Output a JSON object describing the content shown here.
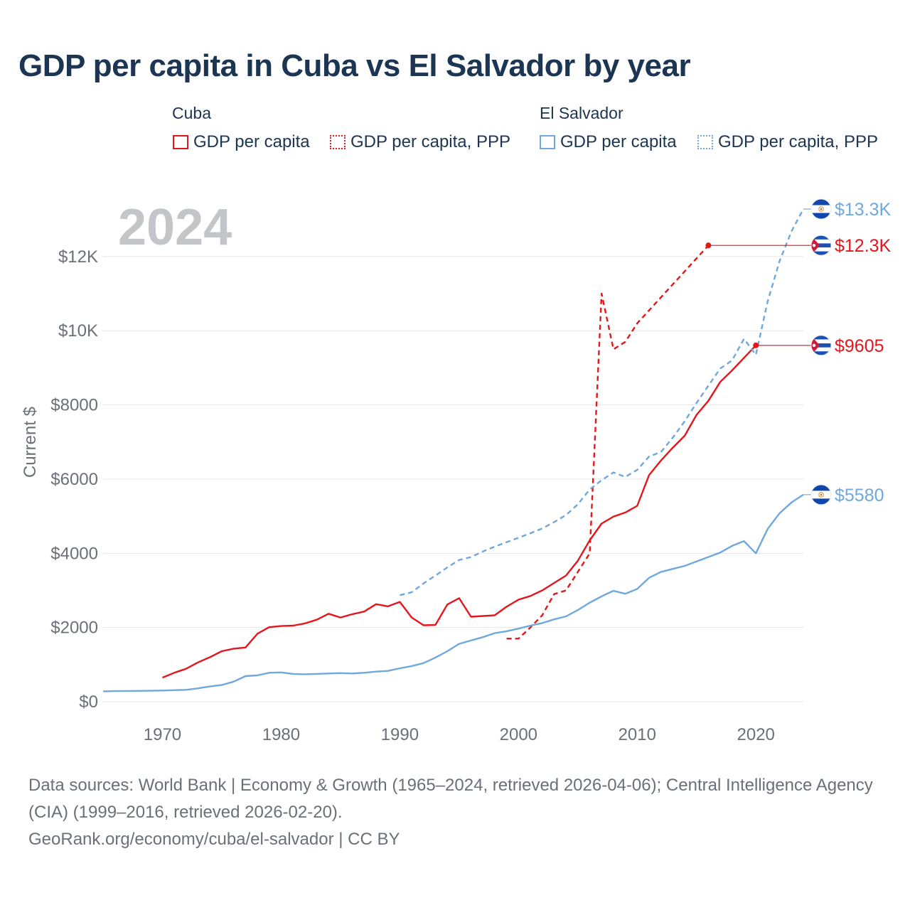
{
  "title": "GDP per capita in Cuba vs El Salvador by year",
  "legend": {
    "groups": [
      {
        "name": "Cuba",
        "items": [
          "GDP per capita",
          "GDP per capita, PPP"
        ]
      },
      {
        "name": "El Salvador",
        "items": [
          "GDP per capita",
          "GDP per capita, PPP"
        ]
      }
    ]
  },
  "colors": {
    "cuba": "#e3161b",
    "el_salvador": "#6fa8dc",
    "grid": "#e6e6e6",
    "axis_text": "#6b6f78",
    "year_label": "#c3c5c9"
  },
  "chart_data": {
    "type": "line",
    "title": "GDP per capita in Cuba vs El Salvador by year",
    "ylabel": "Current $",
    "xlabel": "",
    "xlim": [
      1965,
      2024
    ],
    "ylim": [
      0,
      13300
    ],
    "yticks": [
      0,
      2000,
      4000,
      6000,
      8000,
      10000,
      12000
    ],
    "ytick_labels": [
      "$0",
      "$2000",
      "$4000",
      "$6000",
      "$8000",
      "$10K",
      "$12K"
    ],
    "xticks": [
      1970,
      1980,
      1990,
      2000,
      2010,
      2020
    ],
    "xtick_labels": [
      "1970",
      "1980",
      "1990",
      "2000",
      "2010",
      "2020"
    ],
    "year_label": "2024",
    "series": [
      {
        "name": "Cuba GDP per capita",
        "country": "Cuba",
        "style": "solid",
        "end_label": "$9605",
        "points": [
          [
            1970,
            650
          ],
          [
            1971,
            780
          ],
          [
            1972,
            890
          ],
          [
            1973,
            1060
          ],
          [
            1974,
            1200
          ],
          [
            1975,
            1360
          ],
          [
            1976,
            1430
          ],
          [
            1977,
            1460
          ],
          [
            1978,
            1830
          ],
          [
            1979,
            2010
          ],
          [
            1980,
            2040
          ],
          [
            1981,
            2050
          ],
          [
            1982,
            2110
          ],
          [
            1983,
            2210
          ],
          [
            1984,
            2370
          ],
          [
            1985,
            2270
          ],
          [
            1986,
            2360
          ],
          [
            1987,
            2430
          ],
          [
            1988,
            2630
          ],
          [
            1989,
            2570
          ],
          [
            1990,
            2690
          ],
          [
            1991,
            2270
          ],
          [
            1992,
            2060
          ],
          [
            1993,
            2070
          ],
          [
            1994,
            2620
          ],
          [
            1995,
            2790
          ],
          [
            1996,
            2290
          ],
          [
            1997,
            2310
          ],
          [
            1998,
            2330
          ],
          [
            1999,
            2560
          ],
          [
            2000,
            2750
          ],
          [
            2001,
            2850
          ],
          [
            2002,
            3000
          ],
          [
            2003,
            3200
          ],
          [
            2004,
            3400
          ],
          [
            2005,
            3800
          ],
          [
            2006,
            4350
          ],
          [
            2007,
            4800
          ],
          [
            2008,
            4990
          ],
          [
            2009,
            5100
          ],
          [
            2010,
            5280
          ],
          [
            2011,
            6110
          ],
          [
            2012,
            6500
          ],
          [
            2013,
            6850
          ],
          [
            2014,
            7170
          ],
          [
            2015,
            7730
          ],
          [
            2016,
            8110
          ],
          [
            2017,
            8620
          ],
          [
            2018,
            8930
          ],
          [
            2019,
            9270
          ],
          [
            2020,
            9605
          ]
        ]
      },
      {
        "name": "Cuba GDP per capita, PPP",
        "country": "Cuba",
        "style": "dashed",
        "end_label": "$12.3K",
        "points": [
          [
            1999,
            1700
          ],
          [
            2000,
            1700
          ],
          [
            2001,
            2000
          ],
          [
            2002,
            2330
          ],
          [
            2003,
            2900
          ],
          [
            2004,
            3000
          ],
          [
            2005,
            3500
          ],
          [
            2006,
            4000
          ],
          [
            2007,
            11000
          ],
          [
            2008,
            9500
          ],
          [
            2009,
            9700
          ],
          [
            2010,
            10200
          ],
          [
            2016,
            12300
          ]
        ]
      },
      {
        "name": "El Salvador GDP per capita",
        "country": "El Salvador",
        "style": "solid",
        "end_label": "$5580",
        "points": [
          [
            1965,
            280
          ],
          [
            1966,
            285
          ],
          [
            1967,
            290
          ],
          [
            1968,
            292
          ],
          [
            1969,
            295
          ],
          [
            1970,
            300
          ],
          [
            1971,
            310
          ],
          [
            1972,
            320
          ],
          [
            1973,
            360
          ],
          [
            1974,
            410
          ],
          [
            1975,
            450
          ],
          [
            1976,
            540
          ],
          [
            1977,
            690
          ],
          [
            1978,
            710
          ],
          [
            1979,
            780
          ],
          [
            1980,
            790
          ],
          [
            1981,
            750
          ],
          [
            1982,
            740
          ],
          [
            1983,
            750
          ],
          [
            1984,
            760
          ],
          [
            1985,
            770
          ],
          [
            1986,
            760
          ],
          [
            1987,
            780
          ],
          [
            1988,
            810
          ],
          [
            1989,
            830
          ],
          [
            1990,
            900
          ],
          [
            1991,
            960
          ],
          [
            1992,
            1040
          ],
          [
            1993,
            1190
          ],
          [
            1994,
            1360
          ],
          [
            1995,
            1560
          ],
          [
            1996,
            1650
          ],
          [
            1997,
            1740
          ],
          [
            1998,
            1850
          ],
          [
            1999,
            1900
          ],
          [
            2000,
            1970
          ],
          [
            2001,
            2050
          ],
          [
            2002,
            2120
          ],
          [
            2003,
            2220
          ],
          [
            2004,
            2300
          ],
          [
            2005,
            2470
          ],
          [
            2006,
            2670
          ],
          [
            2007,
            2840
          ],
          [
            2008,
            2990
          ],
          [
            2009,
            2910
          ],
          [
            2010,
            3040
          ],
          [
            2011,
            3340
          ],
          [
            2012,
            3500
          ],
          [
            2013,
            3580
          ],
          [
            2014,
            3660
          ],
          [
            2015,
            3780
          ],
          [
            2016,
            3900
          ],
          [
            2017,
            4020
          ],
          [
            2018,
            4200
          ],
          [
            2019,
            4330
          ],
          [
            2020,
            4000
          ],
          [
            2021,
            4660
          ],
          [
            2022,
            5080
          ],
          [
            2023,
            5370
          ],
          [
            2024,
            5580
          ]
        ]
      },
      {
        "name": "El Salvador GDP per capita, PPP",
        "country": "El Salvador",
        "style": "dashed",
        "end_label": "$13.3K",
        "points": [
          [
            1990,
            2870
          ],
          [
            1991,
            2950
          ],
          [
            1992,
            3190
          ],
          [
            1993,
            3400
          ],
          [
            1994,
            3620
          ],
          [
            1995,
            3820
          ],
          [
            1996,
            3900
          ],
          [
            1997,
            4050
          ],
          [
            1998,
            4180
          ],
          [
            1999,
            4300
          ],
          [
            2000,
            4420
          ],
          [
            2001,
            4540
          ],
          [
            2002,
            4670
          ],
          [
            2003,
            4840
          ],
          [
            2004,
            5030
          ],
          [
            2005,
            5320
          ],
          [
            2006,
            5720
          ],
          [
            2007,
            5970
          ],
          [
            2008,
            6180
          ],
          [
            2009,
            6060
          ],
          [
            2010,
            6250
          ],
          [
            2011,
            6610
          ],
          [
            2012,
            6730
          ],
          [
            2013,
            7120
          ],
          [
            2014,
            7560
          ],
          [
            2015,
            8050
          ],
          [
            2016,
            8520
          ],
          [
            2017,
            8980
          ],
          [
            2018,
            9200
          ],
          [
            2019,
            9780
          ],
          [
            2020,
            9350
          ],
          [
            2021,
            10800
          ],
          [
            2022,
            11880
          ],
          [
            2023,
            12680
          ],
          [
            2024,
            13280
          ]
        ]
      }
    ]
  },
  "footer": {
    "sources": "Data sources: World Bank | Economy & Growth (1965–2024, retrieved 2026-04-06); Central Intelligence Agency (CIA) (1999–2016, retrieved 2026-02-20).",
    "credit": "GeoRank.org/economy/cuba/el-salvador | CC BY"
  }
}
